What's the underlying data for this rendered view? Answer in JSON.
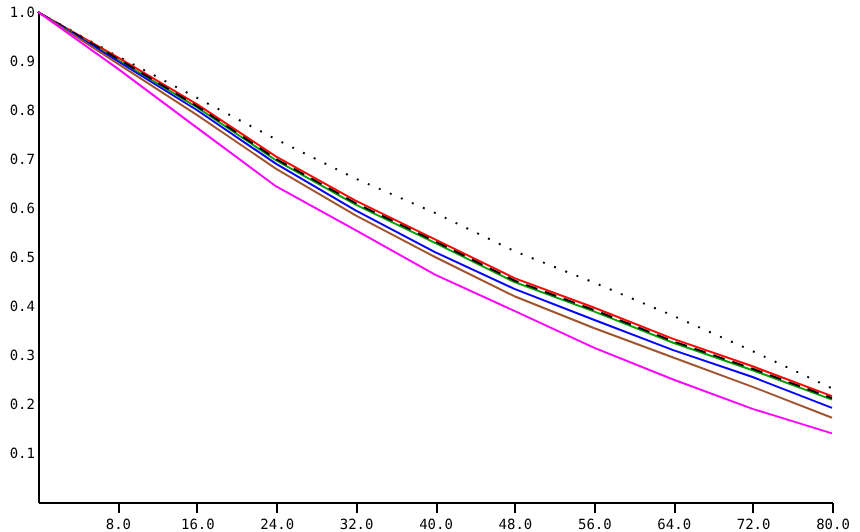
{
  "chart_data": {
    "type": "line",
    "x": [
      0,
      8,
      16,
      24,
      32,
      40,
      48,
      56,
      64,
      72,
      80
    ],
    "series": [
      {
        "color": "#000000",
        "line_style": "dotted",
        "values": [
          1.0,
          0.91,
          0.825,
          0.74,
          0.66,
          0.59,
          0.512,
          0.448,
          0.38,
          0.308,
          0.232
        ]
      },
      {
        "color": "#ff0000",
        "line_style": "solid",
        "values": [
          1.0,
          0.908,
          0.812,
          0.705,
          0.615,
          0.536,
          0.457,
          0.397,
          0.333,
          0.277,
          0.216
        ]
      },
      {
        "color": "#00a000",
        "line_style": "solid",
        "values": [
          1.0,
          0.903,
          0.806,
          0.697,
          0.607,
          0.529,
          0.449,
          0.389,
          0.325,
          0.269,
          0.209
        ]
      },
      {
        "color": "#000000",
        "line_style": "dashed",
        "values": [
          1.0,
          0.905,
          0.808,
          0.7,
          0.61,
          0.532,
          0.452,
          0.392,
          0.328,
          0.272,
          0.212
        ]
      },
      {
        "color": "#0000ff",
        "line_style": "solid",
        "values": [
          1.0,
          0.9,
          0.8,
          0.69,
          0.595,
          0.51,
          0.435,
          0.372,
          0.31,
          0.255,
          0.192
        ]
      },
      {
        "color": "#a0522d",
        "line_style": "solid",
        "values": [
          1.0,
          0.895,
          0.79,
          0.68,
          0.585,
          0.5,
          0.42,
          0.355,
          0.295,
          0.235,
          0.172
        ]
      },
      {
        "color": "#ff00ff",
        "line_style": "solid",
        "values": [
          1.0,
          0.885,
          0.764,
          0.644,
          0.555,
          0.464,
          0.39,
          0.315,
          0.25,
          0.19,
          0.14
        ]
      }
    ],
    "xlim": [
      0,
      80
    ],
    "xticks": [
      {
        "value": 8,
        "label": "8.0"
      },
      {
        "value": 16,
        "label": "16.0"
      },
      {
        "value": 24,
        "label": "24.0"
      },
      {
        "value": 32,
        "label": "32.0"
      },
      {
        "value": 40,
        "label": "40.0"
      },
      {
        "value": 48,
        "label": "48.0"
      },
      {
        "value": 56,
        "label": "56.0"
      },
      {
        "value": 64,
        "label": "64.0"
      },
      {
        "value": 72,
        "label": "72.0"
      },
      {
        "value": 80,
        "label": "80.0"
      }
    ],
    "ylim": [
      0,
      1
    ],
    "yticks": [
      0.1,
      0.2,
      0.3,
      0.4,
      0.5,
      0.6,
      0.7,
      0.8,
      0.9,
      {
        "value": 1.0,
        "label": "1.0"
      }
    ],
    "grid": false
  }
}
